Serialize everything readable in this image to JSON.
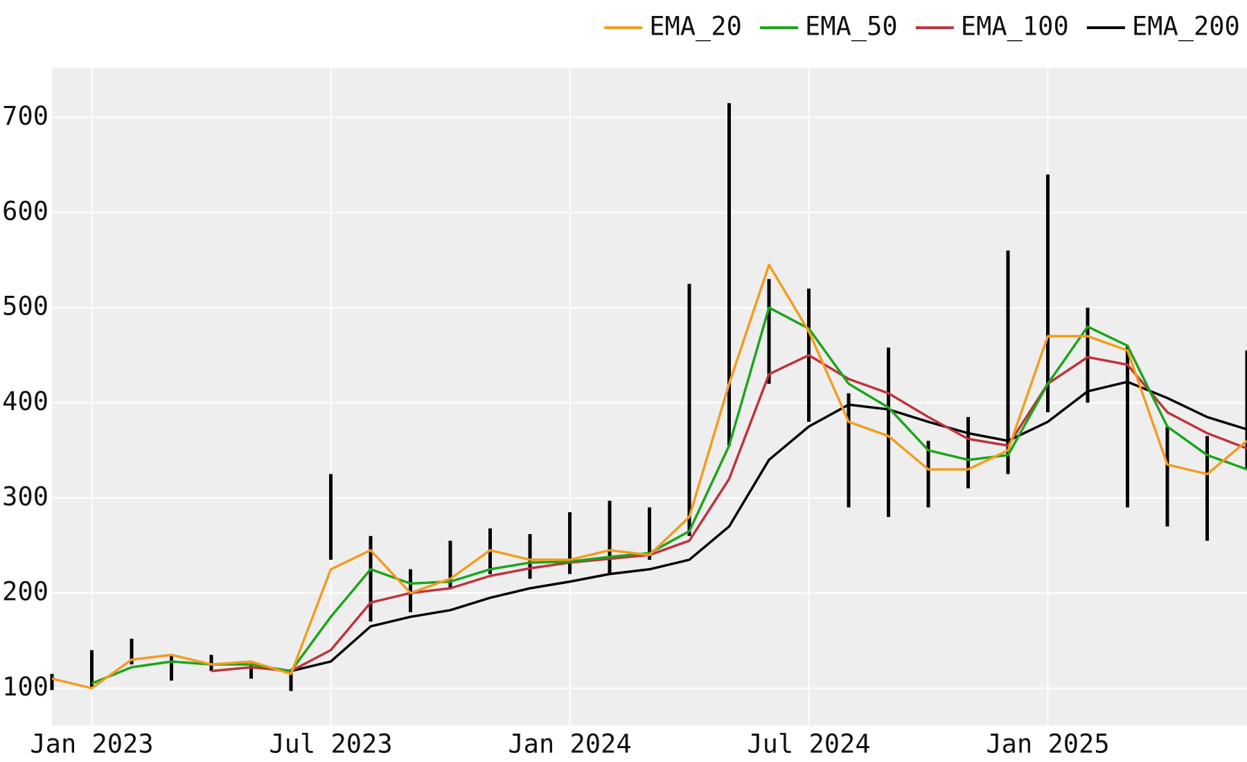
{
  "chart_data": {
    "type": "line",
    "x": [
      "2022-12",
      "2023-01",
      "2023-02",
      "2023-03",
      "2023-04",
      "2023-05",
      "2023-06",
      "2023-07",
      "2023-08",
      "2023-09",
      "2023-10",
      "2023-11",
      "2023-12",
      "2024-01",
      "2024-02",
      "2024-03",
      "2024-04",
      "2024-05",
      "2024-06",
      "2024-07",
      "2024-08",
      "2024-09",
      "2024-10",
      "2024-11",
      "2024-12",
      "2025-01",
      "2025-02",
      "2025-03",
      "2025-04",
      "2025-05",
      "2025-06"
    ],
    "high": [
      115,
      140,
      152,
      135,
      135,
      125,
      120,
      325,
      260,
      225,
      255,
      268,
      262,
      285,
      297,
      290,
      525,
      715,
      530,
      520,
      410,
      458,
      360,
      385,
      560,
      640,
      500,
      460,
      375,
      365,
      455
    ],
    "low": [
      98,
      100,
      125,
      108,
      118,
      110,
      97,
      235,
      170,
      180,
      205,
      220,
      215,
      220,
      220,
      235,
      260,
      355,
      420,
      380,
      290,
      280,
      290,
      310,
      325,
      390,
      400,
      290,
      270,
      255,
      330
    ],
    "bar_color": "#000000",
    "series": [
      {
        "name": "EMA_20",
        "color": "#f39c1f",
        "values": [
          110,
          100,
          130,
          135,
          125,
          128,
          115,
          225,
          245,
          200,
          215,
          245,
          235,
          235,
          245,
          240,
          280,
          420,
          545,
          475,
          380,
          365,
          330,
          330,
          350,
          470,
          470,
          455,
          335,
          325,
          360
        ]
      },
      {
        "name": "EMA_50",
        "color": "#1aa51a",
        "values": [
          null,
          105,
          122,
          128,
          125,
          125,
          118,
          175,
          225,
          210,
          212,
          225,
          232,
          233,
          238,
          242,
          265,
          355,
          500,
          478,
          420,
          395,
          350,
          340,
          345,
          420,
          480,
          460,
          375,
          345,
          330
        ]
      },
      {
        "name": "EMA_100",
        "color": "#c0323c",
        "values": [
          null,
          null,
          null,
          null,
          118,
          122,
          118,
          140,
          190,
          200,
          205,
          218,
          226,
          232,
          236,
          240,
          255,
          320,
          430,
          450,
          425,
          410,
          385,
          362,
          355,
          420,
          448,
          440,
          390,
          368,
          352
        ]
      },
      {
        "name": "EMA_200",
        "color": "#000000",
        "values": [
          null,
          null,
          null,
          null,
          null,
          null,
          118,
          128,
          165,
          175,
          182,
          195,
          205,
          212,
          220,
          225,
          235,
          270,
          340,
          375,
          398,
          393,
          380,
          368,
          360,
          380,
          412,
          422,
          405,
          385,
          372
        ]
      }
    ],
    "xlim": [
      "2022-12",
      "2025-06"
    ],
    "xticks": [
      {
        "value": "2023-01",
        "label": "Jan 2023"
      },
      {
        "value": "2023-07",
        "label": "Jul 2023"
      },
      {
        "value": "2024-01",
        "label": "Jan 2024"
      },
      {
        "value": "2024-07",
        "label": "Jul 2024"
      },
      {
        "value": "2025-01",
        "label": "Jan 2025"
      }
    ],
    "ylim": [
      61,
      752
    ],
    "yticks": [
      100,
      200,
      300,
      400,
      500,
      600,
      700
    ],
    "grid": true,
    "legend": "top-right"
  }
}
